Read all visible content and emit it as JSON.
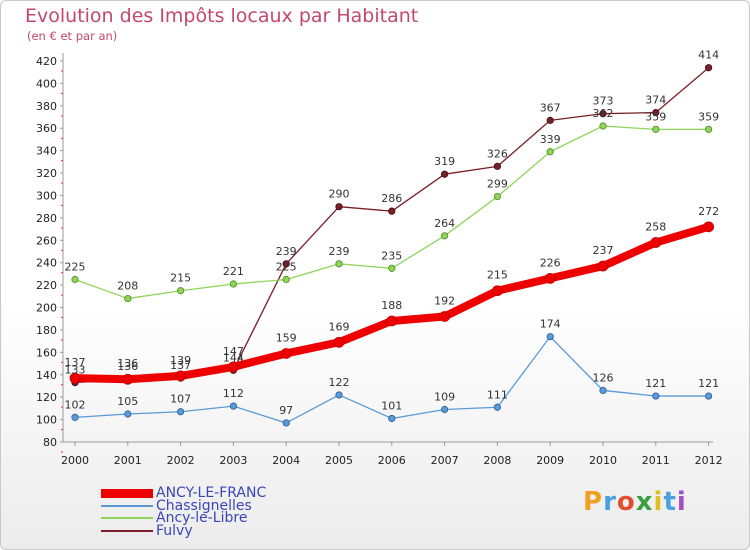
{
  "chart_data": {
    "type": "line",
    "title": "Evolution des Impôts locaux par Habitant",
    "subtitle": "(en € et par an)",
    "xlabel": "",
    "ylabel": "",
    "x": [
      "2000",
      "2001",
      "2002",
      "2003",
      "2004",
      "2005",
      "2006",
      "2007",
      "2008",
      "2009",
      "2010",
      "2011",
      "2012"
    ],
    "ylim": [
      80,
      420
    ],
    "yticks": [
      "80",
      "100",
      "120",
      "140",
      "160",
      "180",
      "200",
      "220",
      "240",
      "260",
      "280",
      "300",
      "320",
      "340",
      "360",
      "380",
      "400",
      "420"
    ],
    "grid": false,
    "legend_position": "bottom-left",
    "series": [
      {
        "name": "Fulvy",
        "color": "#7a1f28",
        "values": [
          133,
          136,
          137,
          144,
          239,
          290,
          286,
          319,
          326,
          367,
          373,
          374,
          414
        ],
        "labels": [
          "133",
          "136",
          "137",
          "144",
          "239",
          "290",
          "286",
          "319",
          "326",
          "367",
          "373",
          "374",
          "414"
        ]
      },
      {
        "name": "Ancy-le-Libre",
        "color": "#90d45a",
        "values": [
          225,
          208,
          215,
          221,
          225,
          239,
          235,
          264,
          299,
          339,
          362,
          359,
          359
        ],
        "labels": [
          "225",
          "208",
          "215",
          "221",
          "225",
          "239",
          "235",
          "264",
          "299",
          "339",
          "362",
          "359",
          "359"
        ]
      },
      {
        "name": "Chassignelles",
        "color": "#5a9ad6",
        "values": [
          102,
          105,
          107,
          112,
          97,
          122,
          101,
          109,
          111,
          174,
          126,
          121,
          121
        ],
        "labels": [
          "102",
          "105",
          "107",
          "112",
          "97",
          "122",
          "101",
          "109",
          "111",
          "174",
          "126",
          "121",
          "121"
        ]
      },
      {
        "name": "ANCY-LE-FRANC",
        "color": "#ee0000",
        "values": [
          137,
          136,
          139,
          147,
          159,
          169,
          188,
          192,
          215,
          226,
          237,
          258,
          272
        ],
        "labels": [
          "137",
          "136",
          "139",
          "147",
          "159",
          "169",
          "188",
          "192",
          "215",
          "226",
          "237",
          "258",
          "272"
        ]
      }
    ],
    "legend": [
      "ANCY-LE-FRANC",
      "Chassignelles",
      "Ancy-le-Libre",
      "Fulvy"
    ]
  },
  "logo": {
    "text": "Proxiti",
    "letters": [
      "P",
      "r",
      "o",
      "x",
      "i",
      "t",
      "i"
    ],
    "colors": [
      "#f0a020",
      "#4aa0e0",
      "#e05030",
      "#3aa040",
      "#e0c020",
      "#4aa0e0",
      "#a050c0"
    ]
  }
}
